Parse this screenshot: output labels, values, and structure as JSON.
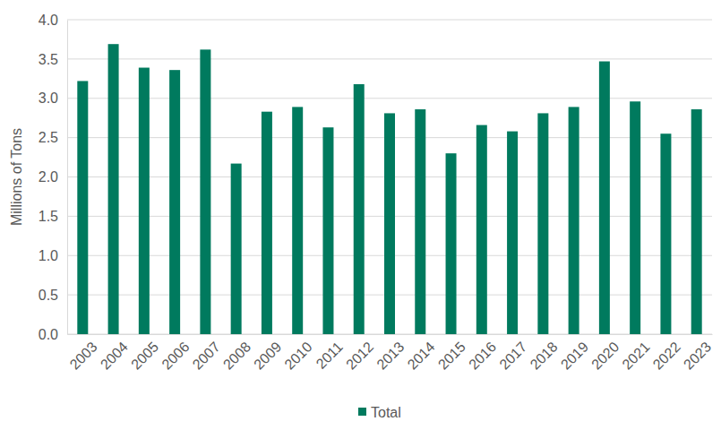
{
  "chart_data": {
    "type": "bar",
    "y_label": "Millions of Tons",
    "categories": [
      "2003",
      "2004",
      "2005",
      "2006",
      "2007",
      "2008",
      "2009",
      "2010",
      "2011",
      "2012",
      "2013",
      "2014",
      "2015",
      "2016",
      "2017",
      "2018",
      "2019",
      "2020",
      "2021",
      "2022",
      "2023"
    ],
    "series": [
      {
        "name": "Total",
        "color": "#007a5e",
        "values": [
          3.22,
          3.69,
          3.39,
          3.36,
          3.62,
          2.17,
          2.83,
          2.89,
          2.63,
          3.18,
          2.81,
          2.86,
          2.3,
          2.66,
          2.58,
          2.81,
          2.89,
          3.47,
          2.96,
          2.55,
          2.86
        ]
      }
    ],
    "ylim": [
      0,
      4
    ],
    "yticks": [
      {
        "value": 0,
        "label": "0.0"
      },
      0.5,
      {
        "value": 1,
        "label": "1.0"
      },
      1.5,
      {
        "value": 2,
        "label": "2.0"
      },
      2.5,
      {
        "value": 3,
        "label": "3.0"
      },
      3.5,
      {
        "value": 4,
        "label": "4.0"
      }
    ],
    "grid": true,
    "legend": "bottom"
  }
}
